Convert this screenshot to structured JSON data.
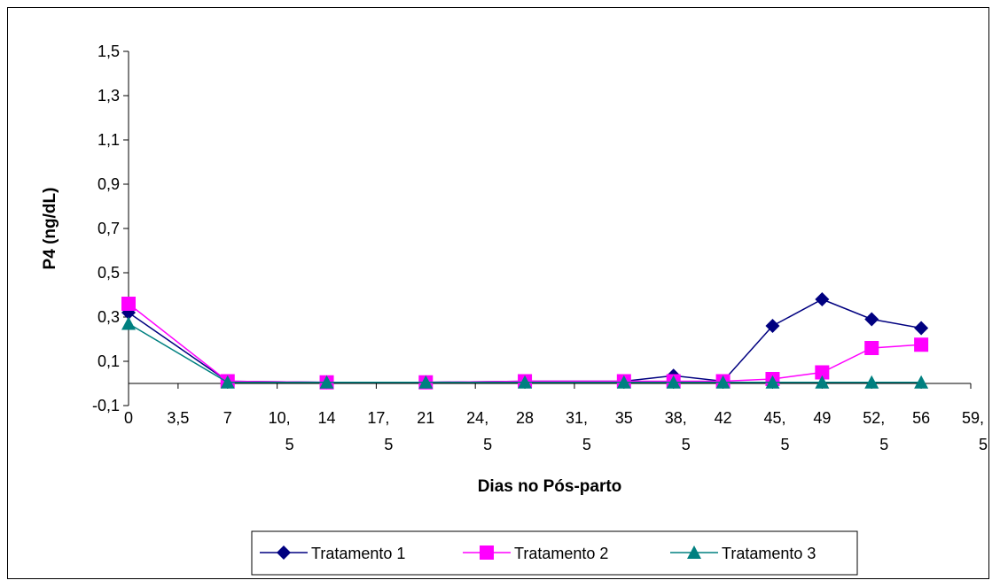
{
  "chart_data": {
    "type": "line",
    "title": "",
    "xlabel": "Dias no Pós-parto",
    "ylabel": "P4 (ng/dL)",
    "x_ticks": [
      {
        "value": 0,
        "lines": [
          "0"
        ]
      },
      {
        "value": 3.5,
        "lines": [
          "3,5"
        ]
      },
      {
        "value": 7,
        "lines": [
          "7"
        ]
      },
      {
        "value": 10.5,
        "lines": [
          "10,",
          "5"
        ]
      },
      {
        "value": 14,
        "lines": [
          "14"
        ]
      },
      {
        "value": 17.5,
        "lines": [
          "17,",
          "5"
        ]
      },
      {
        "value": 21,
        "lines": [
          "21"
        ]
      },
      {
        "value": 24.5,
        "lines": [
          "24,",
          "5"
        ]
      },
      {
        "value": 28,
        "lines": [
          "28"
        ]
      },
      {
        "value": 31.5,
        "lines": [
          "31,",
          "5"
        ]
      },
      {
        "value": 35,
        "lines": [
          "35"
        ]
      },
      {
        "value": 38.5,
        "lines": [
          "38,",
          "5"
        ]
      },
      {
        "value": 42,
        "lines": [
          "42"
        ]
      },
      {
        "value": 45.5,
        "lines": [
          "45,",
          "5"
        ]
      },
      {
        "value": 49,
        "lines": [
          "49"
        ]
      },
      {
        "value": 52.5,
        "lines": [
          "52,",
          "5"
        ]
      },
      {
        "value": 56,
        "lines": [
          "56"
        ]
      },
      {
        "value": 59.5,
        "lines": [
          "59,",
          "5"
        ]
      }
    ],
    "y_ticks": [
      {
        "value": -0.1,
        "label": "-0,1"
      },
      {
        "value": 0.1,
        "label": "0,1"
      },
      {
        "value": 0.3,
        "label": "0,3"
      },
      {
        "value": 0.5,
        "label": "0,5"
      },
      {
        "value": 0.7,
        "label": "0,7"
      },
      {
        "value": 0.9,
        "label": "0,9"
      },
      {
        "value": 1.1,
        "label": "1,1"
      },
      {
        "value": 1.3,
        "label": "1,3"
      },
      {
        "value": 1.5,
        "label": "1,5"
      }
    ],
    "xlim": [
      0,
      59.5
    ],
    "ylim": [
      -0.1,
      1.5
    ],
    "grid": false,
    "legend_position": "bottom",
    "x": [
      0,
      7,
      14,
      21,
      28,
      35,
      38.5,
      42,
      45.5,
      49,
      52.5,
      56
    ],
    "series": [
      {
        "name": "Tratamento 1",
        "color": "#000080",
        "marker": "diamond",
        "values": [
          0.32,
          0.01,
          0.005,
          0.005,
          0.01,
          0.01,
          0.035,
          0.01,
          0.26,
          0.38,
          0.29,
          0.25
        ]
      },
      {
        "name": "Tratamento 2",
        "color": "#ff00ff",
        "marker": "square",
        "values": [
          0.36,
          0.01,
          0.005,
          0.005,
          0.01,
          0.01,
          0.01,
          0.01,
          0.02,
          0.05,
          0.16,
          0.175
        ]
      },
      {
        "name": "Tratamento 3",
        "color": "#008080",
        "marker": "triangle",
        "values": [
          0.27,
          0.005,
          0.005,
          0.005,
          0.005,
          0.005,
          0.005,
          0.005,
          0.005,
          0.005,
          0.005,
          0.005
        ]
      }
    ]
  }
}
